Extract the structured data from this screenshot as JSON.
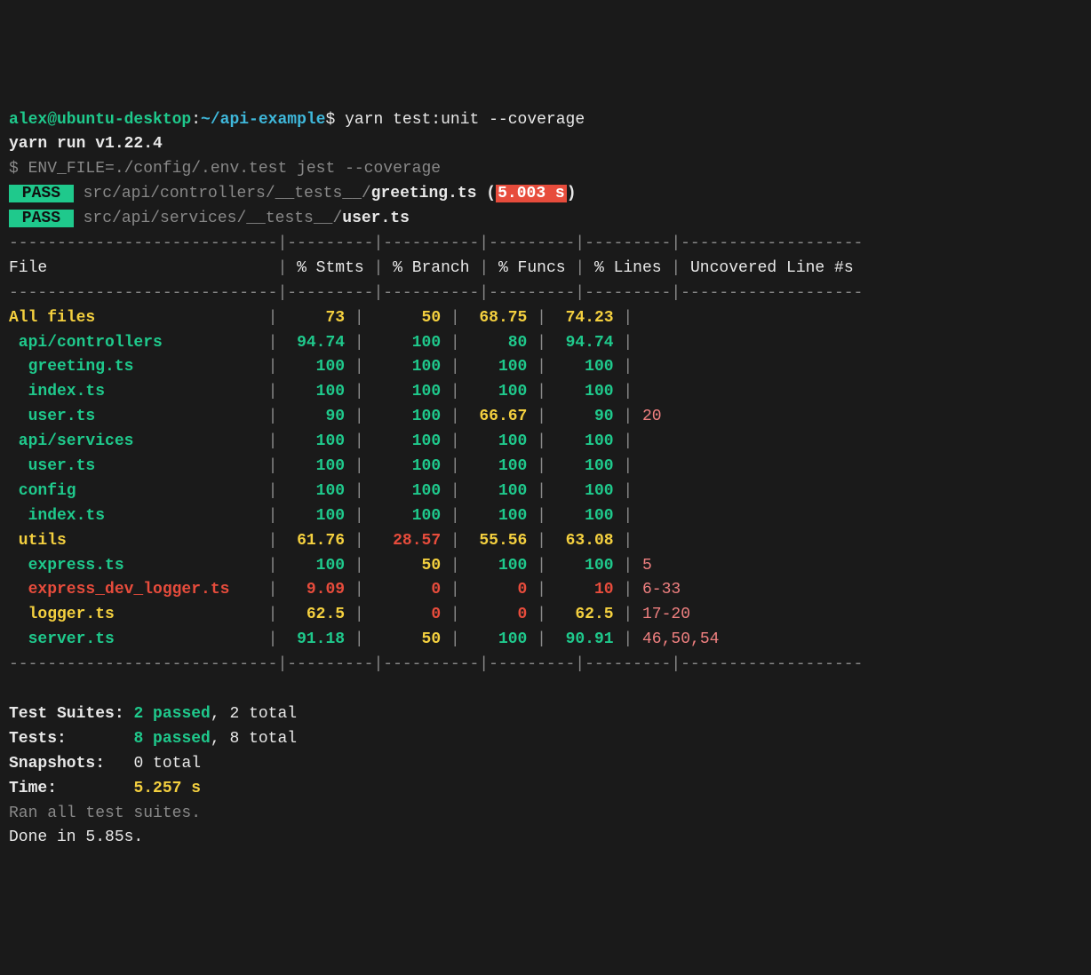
{
  "prompt": {
    "user": "alex@ubuntu-desktop",
    "separator": ":",
    "path": "~/api-example",
    "dollar": "$ ",
    "command": "yarn test:unit --coverage"
  },
  "yarn": {
    "runLine": "yarn run v1.22.4",
    "dollar": "$ ",
    "envCommand": "ENV_FILE=./config/.env.test jest --coverage"
  },
  "passResults": [
    {
      "badge": " PASS ",
      "prefix": " src/api/controllers/__tests__/",
      "file": "greeting.ts",
      "timingPrefix": " (",
      "timingValue": "5.003 s",
      "timingSuffix": ")"
    },
    {
      "badge": " PASS ",
      "prefix": " src/api/services/__tests__/",
      "file": "user.ts"
    }
  ],
  "table": {
    "topBorder": "----------------------------|---------|----------|---------|---------|-------------------",
    "headerRow": {
      "file": "File                        ",
      "stmts": " % Stmts ",
      "branch": " % Branch ",
      "funcs": " % Funcs ",
      "lines": " % Lines ",
      "uncovered": " Uncovered Line #s "
    },
    "midBorder": "----------------------------|---------|----------|---------|---------|-------------------",
    "rows": [
      {
        "file": "All files                  ",
        "indent": 0,
        "stmts": "     73 ",
        "branch": "      50 ",
        "funcs": "  68.75 ",
        "lines": "  74.23 ",
        "uncovered": "",
        "colorFile": "yellow-bold",
        "colorStmts": "yellow-bold",
        "colorBranch": "yellow-bold",
        "colorFuncs": "yellow-bold",
        "colorLines": "yellow-bold",
        "colorUncov": "salmon"
      },
      {
        "file": " api/controllers           ",
        "indent": 0,
        "stmts": "  94.74 ",
        "branch": "     100 ",
        "funcs": "     80 ",
        "lines": "  94.74 ",
        "uncovered": "",
        "colorFile": "green-bold",
        "colorStmts": "green-bold",
        "colorBranch": "green-bold",
        "colorFuncs": "green-bold",
        "colorLines": "green-bold",
        "colorUncov": "salmon"
      },
      {
        "file": "  greeting.ts              ",
        "indent": 0,
        "stmts": "    100 ",
        "branch": "     100 ",
        "funcs": "    100 ",
        "lines": "    100 ",
        "uncovered": "",
        "colorFile": "green-bold",
        "colorStmts": "green-bold",
        "colorBranch": "green-bold",
        "colorFuncs": "green-bold",
        "colorLines": "green-bold",
        "colorUncov": "salmon"
      },
      {
        "file": "  index.ts                 ",
        "indent": 0,
        "stmts": "    100 ",
        "branch": "     100 ",
        "funcs": "    100 ",
        "lines": "    100 ",
        "uncovered": "",
        "colorFile": "green-bold",
        "colorStmts": "green-bold",
        "colorBranch": "green-bold",
        "colorFuncs": "green-bold",
        "colorLines": "green-bold",
        "colorUncov": "salmon"
      },
      {
        "file": "  user.ts                  ",
        "indent": 0,
        "stmts": "     90 ",
        "branch": "     100 ",
        "funcs": "  66.67 ",
        "lines": "     90 ",
        "uncovered": " 20",
        "colorFile": "green-bold",
        "colorStmts": "green-bold",
        "colorBranch": "green-bold",
        "colorFuncs": "yellow-bold",
        "colorLines": "green-bold",
        "colorUncov": "salmon"
      },
      {
        "file": " api/services              ",
        "indent": 0,
        "stmts": "    100 ",
        "branch": "     100 ",
        "funcs": "    100 ",
        "lines": "    100 ",
        "uncovered": "",
        "colorFile": "green-bold",
        "colorStmts": "green-bold",
        "colorBranch": "green-bold",
        "colorFuncs": "green-bold",
        "colorLines": "green-bold",
        "colorUncov": "salmon"
      },
      {
        "file": "  user.ts                  ",
        "indent": 0,
        "stmts": "    100 ",
        "branch": "     100 ",
        "funcs": "    100 ",
        "lines": "    100 ",
        "uncovered": "",
        "colorFile": "green-bold",
        "colorStmts": "green-bold",
        "colorBranch": "green-bold",
        "colorFuncs": "green-bold",
        "colorLines": "green-bold",
        "colorUncov": "salmon"
      },
      {
        "file": " config                    ",
        "indent": 0,
        "stmts": "    100 ",
        "branch": "     100 ",
        "funcs": "    100 ",
        "lines": "    100 ",
        "uncovered": "",
        "colorFile": "green-bold",
        "colorStmts": "green-bold",
        "colorBranch": "green-bold",
        "colorFuncs": "green-bold",
        "colorLines": "green-bold",
        "colorUncov": "salmon"
      },
      {
        "file": "  index.ts                 ",
        "indent": 0,
        "stmts": "    100 ",
        "branch": "     100 ",
        "funcs": "    100 ",
        "lines": "    100 ",
        "uncovered": "",
        "colorFile": "green-bold",
        "colorStmts": "green-bold",
        "colorBranch": "green-bold",
        "colorFuncs": "green-bold",
        "colorLines": "green-bold",
        "colorUncov": "salmon"
      },
      {
        "file": " utils                     ",
        "indent": 0,
        "stmts": "  61.76 ",
        "branch": "   28.57 ",
        "funcs": "  55.56 ",
        "lines": "  63.08 ",
        "uncovered": "",
        "colorFile": "yellow-bold",
        "colorStmts": "yellow-bold",
        "colorBranch": "red-bold",
        "colorFuncs": "yellow-bold",
        "colorLines": "yellow-bold",
        "colorUncov": "salmon"
      },
      {
        "file": "  express.ts               ",
        "indent": 0,
        "stmts": "    100 ",
        "branch": "      50 ",
        "funcs": "    100 ",
        "lines": "    100 ",
        "uncovered": " 5",
        "colorFile": "green-bold",
        "colorStmts": "green-bold",
        "colorBranch": "yellow-bold",
        "colorFuncs": "green-bold",
        "colorLines": "green-bold",
        "colorUncov": "salmon"
      },
      {
        "file": "  express_dev_logger.ts    ",
        "indent": 0,
        "stmts": "   9.09 ",
        "branch": "       0 ",
        "funcs": "      0 ",
        "lines": "     10 ",
        "uncovered": " 6-33",
        "colorFile": "red-bold",
        "colorStmts": "red-bold",
        "colorBranch": "red-bold",
        "colorFuncs": "red-bold",
        "colorLines": "red-bold",
        "colorUncov": "salmon"
      },
      {
        "file": "  logger.ts                ",
        "indent": 0,
        "stmts": "   62.5 ",
        "branch": "       0 ",
        "funcs": "      0 ",
        "lines": "   62.5 ",
        "uncovered": " 17-20",
        "colorFile": "yellow-bold",
        "colorStmts": "yellow-bold",
        "colorBranch": "red-bold",
        "colorFuncs": "red-bold",
        "colorLines": "yellow-bold",
        "colorUncov": "salmon"
      },
      {
        "file": "  server.ts                ",
        "indent": 0,
        "stmts": "  91.18 ",
        "branch": "      50 ",
        "funcs": "    100 ",
        "lines": "  90.91 ",
        "uncovered": " 46,50,54",
        "colorFile": "green-bold",
        "colorStmts": "green-bold",
        "colorBranch": "yellow-bold",
        "colorFuncs": "green-bold",
        "colorLines": "green-bold",
        "colorUncov": "salmon"
      }
    ],
    "bottomBorder": "----------------------------|---------|----------|---------|---------|-------------------"
  },
  "summary": {
    "suites": {
      "label": "Test Suites: ",
      "passed": "2 passed",
      "rest": ", 2 total"
    },
    "tests": {
      "label": "Tests:       ",
      "passed": "8 passed",
      "rest": ", 8 total"
    },
    "snapshots": {
      "label": "Snapshots:   ",
      "rest": "0 total"
    },
    "time": {
      "label": "Time:        ",
      "value": "5.257 s"
    },
    "ranLine": "Ran all test suites.",
    "doneLine": "Done in 5.85s."
  },
  "colors": {
    "background": "#1a1a1a",
    "text": "#e8e8e8",
    "green": "#1fc98c",
    "cyan": "#3fb8db",
    "blue": "#5294e2",
    "yellow": "#f4d03f",
    "red": "#e74c3c",
    "salmon": "#f08080",
    "gray": "#888888"
  }
}
